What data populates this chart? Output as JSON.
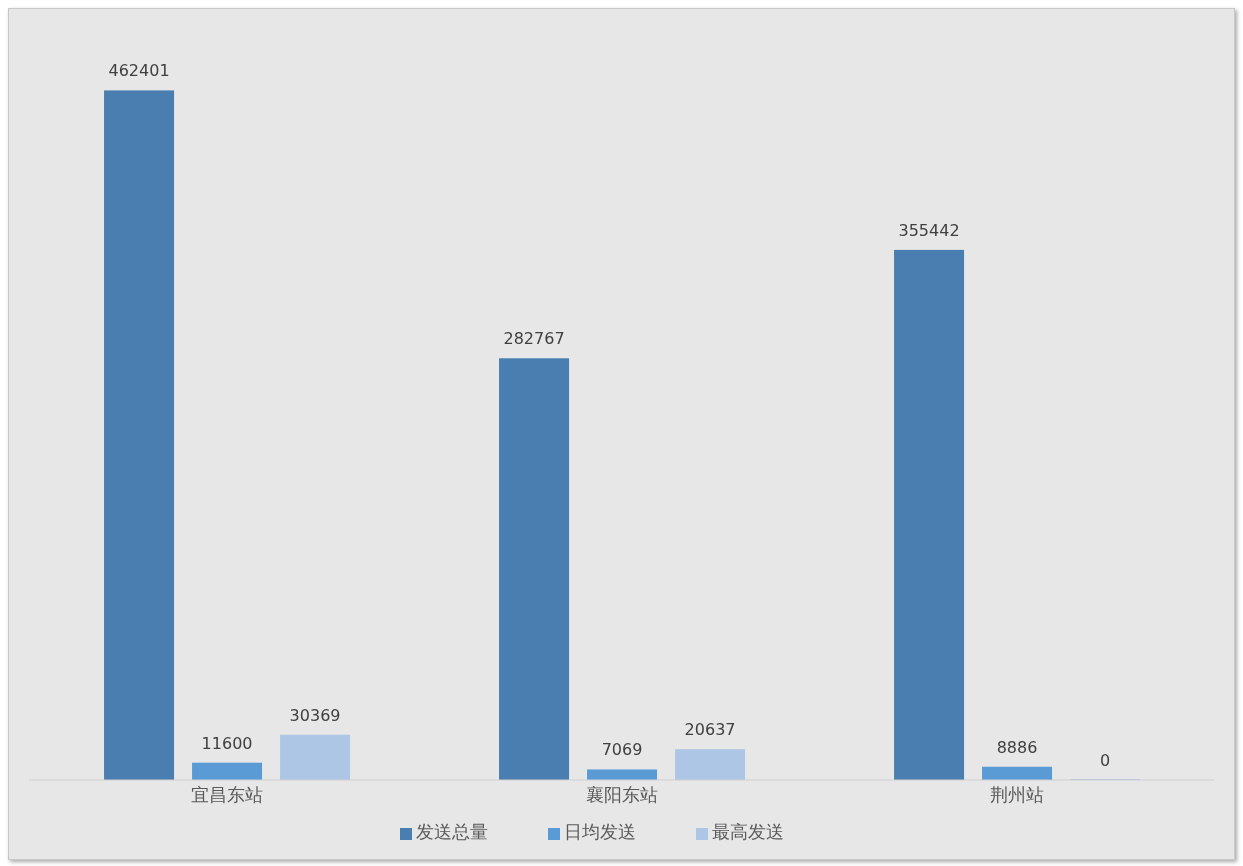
{
  "chart_data": {
    "type": "bar",
    "categories": [
      "宜昌东站",
      "襄阳东站",
      "荆州站"
    ],
    "series": [
      {
        "name": "发送总量",
        "color": "#4a7eb0",
        "values": [
          462401,
          282767,
          355442
        ]
      },
      {
        "name": "日均发送",
        "color": "#5b9bd5",
        "values": [
          11600,
          7069,
          8886
        ]
      },
      {
        "name": "最高发送",
        "color": "#aec6e6",
        "values": [
          30369,
          20637,
          0
        ]
      }
    ],
    "data_labels": true,
    "legend": "bottom",
    "grid": false
  }
}
